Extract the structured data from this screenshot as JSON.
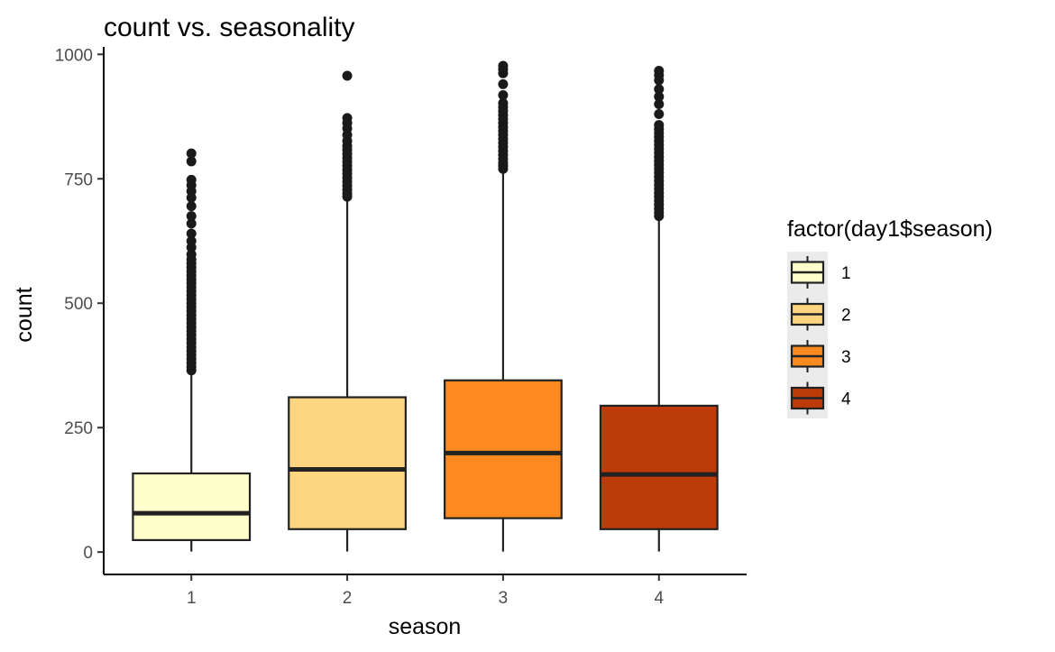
{
  "chart_data": {
    "type": "boxplot",
    "title": "count vs. seasonality",
    "xlabel": "season",
    "ylabel": "count",
    "categories": [
      "1",
      "2",
      "3",
      "4"
    ],
    "ylim": [
      -45,
      1015
    ],
    "yticks": [
      0,
      250,
      500,
      750,
      1000
    ],
    "grid": false,
    "legend": {
      "title": "factor(day1$season)",
      "position": "right",
      "items": [
        "1",
        "2",
        "3",
        "4"
      ]
    },
    "colors": [
      "#FFFFCC",
      "#FDD480",
      "#FC8A20",
      "#BD3A09"
    ],
    "boxes": [
      {
        "category": "1",
        "min": 1,
        "q1": 24,
        "median": 78,
        "q3": 158,
        "whisker_high": 358,
        "outliers": [
          365,
          372,
          380,
          388,
          396,
          404,
          412,
          420,
          428,
          436,
          444,
          452,
          460,
          468,
          476,
          484,
          492,
          500,
          508,
          516,
          524,
          532,
          540,
          548,
          556,
          564,
          572,
          580,
          588,
          598,
          612,
          625,
          640,
          660,
          675,
          695,
          712,
          725,
          737,
          748,
          785,
          801
        ]
      },
      {
        "category": "2",
        "min": 1,
        "q1": 46,
        "median": 166,
        "q3": 311,
        "whisker_high": 710,
        "outliers": [
          714,
          720,
          728,
          736,
          744,
          752,
          760,
          768,
          776,
          784,
          792,
          800,
          808,
          816,
          826,
          838,
          851,
          862,
          872,
          957
        ]
      },
      {
        "category": "3",
        "min": 1,
        "q1": 68,
        "median": 199,
        "q3": 345,
        "whisker_high": 765,
        "outliers": [
          770,
          776,
          782,
          790,
          798,
          806,
          814,
          822,
          830,
          838,
          846,
          854,
          862,
          870,
          878,
          886,
          894,
          902,
          918,
          940,
          962,
          970,
          977
        ]
      },
      {
        "category": "4",
        "min": 1,
        "q1": 46,
        "median": 156,
        "q3": 294,
        "whisker_high": 670,
        "outliers": [
          675,
          682,
          690,
          698,
          706,
          714,
          722,
          730,
          738,
          746,
          754,
          762,
          770,
          778,
          786,
          794,
          802,
          810,
          818,
          826,
          834,
          842,
          850,
          858,
          880,
          900,
          915,
          930,
          948,
          958,
          967
        ]
      }
    ]
  }
}
